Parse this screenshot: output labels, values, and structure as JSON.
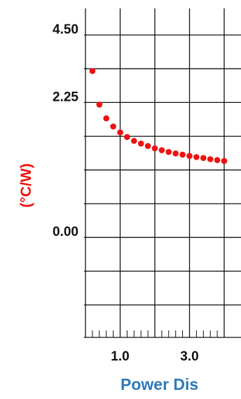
{
  "chart_data": {
    "type": "scatter",
    "ylabel": "(°C/W)",
    "xlabel": "Power Dis",
    "y_ticks": [
      {
        "label": "4.50",
        "row": 0
      },
      {
        "label": "2.25",
        "row": 2
      },
      {
        "label": "0.00",
        "row": 6
      }
    ],
    "x_ticks": [
      {
        "label": "1.0",
        "value": 1.0
      },
      {
        "label": "3.0",
        "value": 3.0
      }
    ],
    "xlim": [
      0.0,
      4.0
    ],
    "grid_rows": 9,
    "grid": true,
    "colors": {
      "points": "#ee1111",
      "ylabel": "#ee1111",
      "xlabel": "#2e7ab8",
      "grid": "#111111"
    },
    "series": [
      {
        "x": [
          0.2,
          0.4,
          0.6,
          0.8,
          1.0,
          1.2,
          1.4,
          1.6,
          1.8,
          2.0,
          2.2,
          2.4,
          2.6,
          2.8,
          3.0,
          3.2,
          3.4,
          3.6,
          3.8,
          4.0
        ],
        "y": [
          3.3,
          2.18,
          1.72,
          1.45,
          1.25,
          1.1,
          0.97,
          0.88,
          0.8,
          0.72,
          0.66,
          0.6,
          0.55,
          0.51,
          0.47,
          0.43,
          0.4,
          0.36,
          0.33,
          0.3
        ]
      }
    ]
  }
}
